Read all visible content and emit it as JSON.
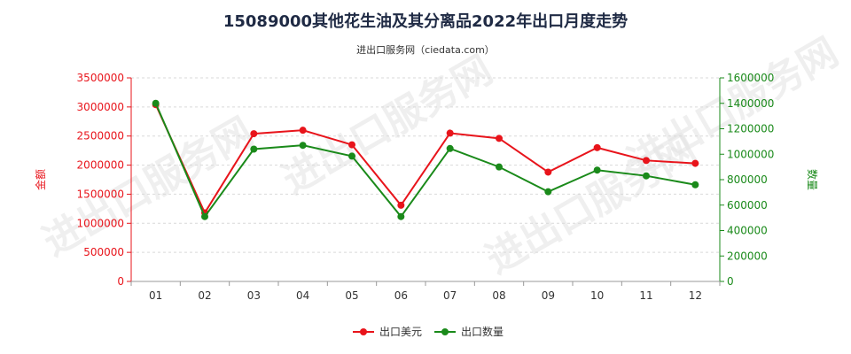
{
  "title": "15089000其他花生油及其分离品2022年出口月度走势",
  "subtitle": "进出口服务网（ciedata.com）",
  "watermark": "进出口服务网",
  "chart_data": {
    "type": "line",
    "categories": [
      "01",
      "02",
      "03",
      "04",
      "05",
      "06",
      "07",
      "08",
      "09",
      "10",
      "11",
      "12"
    ],
    "y_left": {
      "label": "金额",
      "min": 0,
      "max": 3500000,
      "step": 500000,
      "ticks": [
        "0",
        "500000",
        "1000000",
        "1500000",
        "2000000",
        "2500000",
        "3000000",
        "3500000"
      ],
      "color": "#e8141b"
    },
    "y_right": {
      "label": "数量",
      "min": 0,
      "max": 1600000,
      "step": 200000,
      "ticks": [
        "0",
        "200000",
        "400000",
        "600000",
        "800000",
        "1000000",
        "1200000",
        "1400000",
        "1600000"
      ],
      "color": "#1a8a1a"
    },
    "series": [
      {
        "name": "出口美元",
        "axis": "left",
        "color": "#e8141b",
        "values": [
          3040000,
          1180000,
          2540000,
          2600000,
          2350000,
          1310000,
          2550000,
          2460000,
          1880000,
          2300000,
          2080000,
          2030000
        ]
      },
      {
        "name": "出口数量",
        "axis": "right",
        "color": "#1a8a1a",
        "values": [
          1400000,
          510000,
          1040000,
          1070000,
          985000,
          510000,
          1045000,
          900000,
          705000,
          875000,
          830000,
          760000
        ]
      }
    ],
    "grid": true,
    "legend_position": "bottom"
  }
}
